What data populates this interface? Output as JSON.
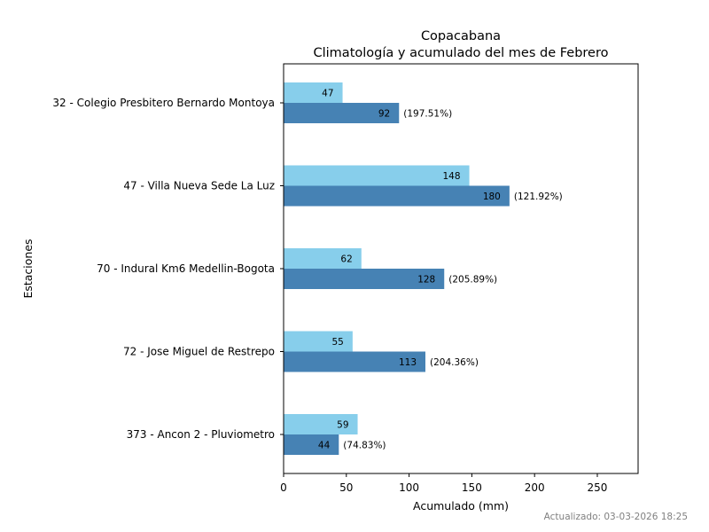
{
  "chart_data": {
    "type": "bar",
    "orientation": "horizontal",
    "title": "Copacabana",
    "subtitle": "Climatología y acumulado del mes de Febrero",
    "xlabel": "Acumulado (mm)",
    "ylabel": "Estaciones",
    "xlim": [
      0,
      282.5
    ],
    "xticks": [
      0,
      50,
      100,
      150,
      200,
      250
    ],
    "grid": false,
    "categories": [
      "32 - Colegio Presbitero Bernardo Montoya ",
      "47 - Villa Nueva Sede La Luz",
      "70 - Indural Km6 Medellin-Bogota",
      "72 - Jose Miguel de Restrepo",
      "373 - Ancon 2 - Pluviometro"
    ],
    "series": [
      {
        "name": "Climatología",
        "color": "#87ceeb",
        "values": [
          47,
          148,
          62,
          55,
          59
        ]
      },
      {
        "name": "Acumulado",
        "color": "#4682b4",
        "values": [
          92,
          180,
          128,
          113,
          44
        ]
      }
    ],
    "percent_labels": [
      "(197.51%)",
      "(121.92%)",
      "(205.89%)",
      "(204.36%)",
      "(74.83%)"
    ]
  },
  "footer": "Actualizado: 03-03-2026 18:25"
}
